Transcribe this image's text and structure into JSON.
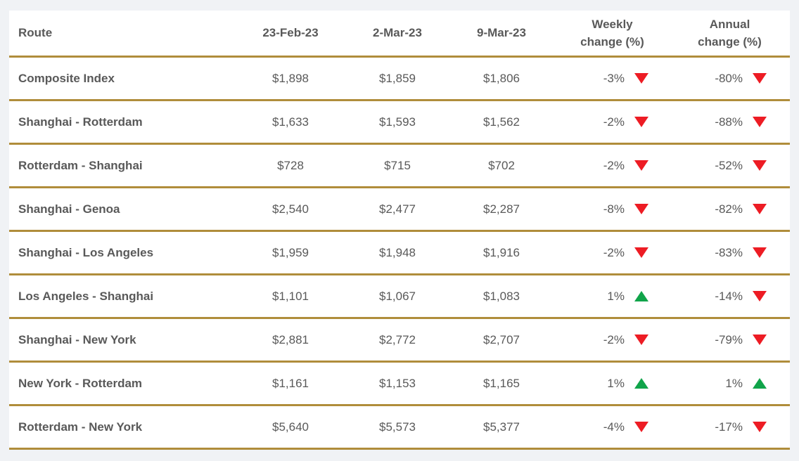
{
  "colors": {
    "page_background": "#F0F2F5",
    "card_background": "#FFFFFF",
    "separator_gold": "#B08D3B",
    "text_gray": "#595959",
    "negative_red": "#ED1C24",
    "positive_green": "#10A44A"
  },
  "table": {
    "headers": {
      "route": "Route",
      "date1": "23-Feb-23",
      "date2": "2-Mar-23",
      "date3": "9-Mar-23",
      "weekly_line1": "Weekly",
      "weekly_line2": "change (%)",
      "annual_line1": "Annual",
      "annual_line2": "change (%)"
    },
    "rows": [
      {
        "route": "Composite Index",
        "price1": "$1,898",
        "price2": "$1,859",
        "price3": "$1,806",
        "weekly": "-3%",
        "weekly_dir": "down",
        "annual": "-80%",
        "annual_dir": "down"
      },
      {
        "route": "Shanghai - Rotterdam",
        "price1": "$1,633",
        "price2": "$1,593",
        "price3": "$1,562",
        "weekly": "-2%",
        "weekly_dir": "down",
        "annual": "-88%",
        "annual_dir": "down"
      },
      {
        "route": "Rotterdam - Shanghai",
        "price1": "$728",
        "price2": "$715",
        "price3": "$702",
        "weekly": "-2%",
        "weekly_dir": "down",
        "annual": "-52%",
        "annual_dir": "down"
      },
      {
        "route": "Shanghai - Genoa",
        "price1": "$2,540",
        "price2": "$2,477",
        "price3": "$2,287",
        "weekly": "-8%",
        "weekly_dir": "down",
        "annual": "-82%",
        "annual_dir": "down"
      },
      {
        "route": "Shanghai - Los Angeles",
        "price1": "$1,959",
        "price2": "$1,948",
        "price3": "$1,916",
        "weekly": "-2%",
        "weekly_dir": "down",
        "annual": "-83%",
        "annual_dir": "down"
      },
      {
        "route": "Los Angeles - Shanghai",
        "price1": "$1,101",
        "price2": "$1,067",
        "price3": "$1,083",
        "weekly": "1%",
        "weekly_dir": "up",
        "annual": "-14%",
        "annual_dir": "down"
      },
      {
        "route": "Shanghai - New York",
        "price1": "$2,881",
        "price2": "$2,772",
        "price3": "$2,707",
        "weekly": "-2%",
        "weekly_dir": "down",
        "annual": "-79%",
        "annual_dir": "down"
      },
      {
        "route": "New York - Rotterdam",
        "price1": "$1,161",
        "price2": "$1,153",
        "price3": "$1,165",
        "weekly": "1%",
        "weekly_dir": "up",
        "annual": "1%",
        "annual_dir": "up"
      },
      {
        "route": "Rotterdam - New York",
        "price1": "$5,640",
        "price2": "$5,573",
        "price3": "$5,377",
        "weekly": "-4%",
        "weekly_dir": "down",
        "annual": "-17%",
        "annual_dir": "down"
      }
    ]
  }
}
